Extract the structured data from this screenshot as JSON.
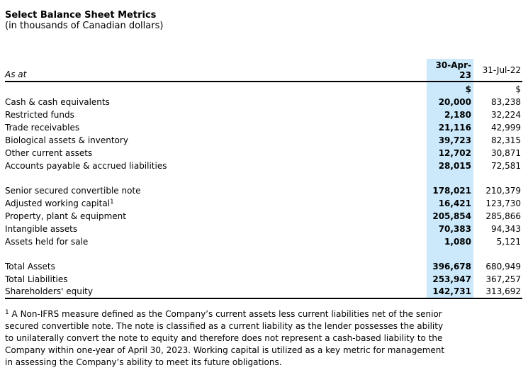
{
  "header": {
    "title": "Select Balance Sheet Metrics",
    "subtitle": "(in thousands of Canadian dollars)"
  },
  "table": {
    "as_at_label": "As at",
    "highlight_color": "#cbe9fa",
    "columns": [
      {
        "label": "30-Apr-23",
        "currency": "$",
        "highlighted": true
      },
      {
        "label": "31-Jul-22",
        "currency": "$",
        "highlighted": false
      }
    ],
    "rows": [
      {
        "label": "Cash & cash equivalents",
        "v1": "20,000",
        "v2": "83,238"
      },
      {
        "label": "Restricted funds",
        "v1": "2,180",
        "v2": "32,224"
      },
      {
        "label": "Trade receivables",
        "v1": "21,116",
        "v2": "42,999"
      },
      {
        "label": "Biological assets & inventory",
        "v1": "39,723",
        "v2": "82,315"
      },
      {
        "label": "Other current assets",
        "v1": "12,702",
        "v2": "30,871"
      },
      {
        "label": "Accounts payable & accrued liabilities",
        "v1": "28,015",
        "v2": "72,581"
      },
      {
        "blank": true
      },
      {
        "label": "Senior secured convertible note",
        "v1": "178,021",
        "v2": "210,379"
      },
      {
        "label": "Adjusted working capital",
        "sup": "1",
        "v1": "16,421",
        "v2": "123,730"
      },
      {
        "label": "Property, plant & equipment",
        "v1": "205,854",
        "v2": "285,866"
      },
      {
        "label": "Intangible assets",
        "v1": "70,383",
        "v2": "94,343"
      },
      {
        "label": "Assets held for sale",
        "v1": "1,080",
        "v2": "5,121"
      },
      {
        "blank": true
      },
      {
        "label": "Total Assets",
        "v1": "396,678",
        "v2": "680,949"
      },
      {
        "label": "Total Liabilities",
        "v1": "253,947",
        "v2": "367,257"
      },
      {
        "label": "Shareholders' equity",
        "v1": "142,731",
        "v2": "313,692"
      }
    ]
  },
  "footnote": {
    "marker": "1",
    "text": " A Non-IFRS measure defined as the Company’s current assets less current liabilities net of the senior secured convertible note. The note is classified as a current liability as the lender possesses the ability to unilaterally convert the note to equity and therefore does not represent a cash-based liability to the Company within one-year of April 30, 2023. Working capital is utilized as a key metric for management in assessing the Company’s ability to meet its future obligations."
  }
}
